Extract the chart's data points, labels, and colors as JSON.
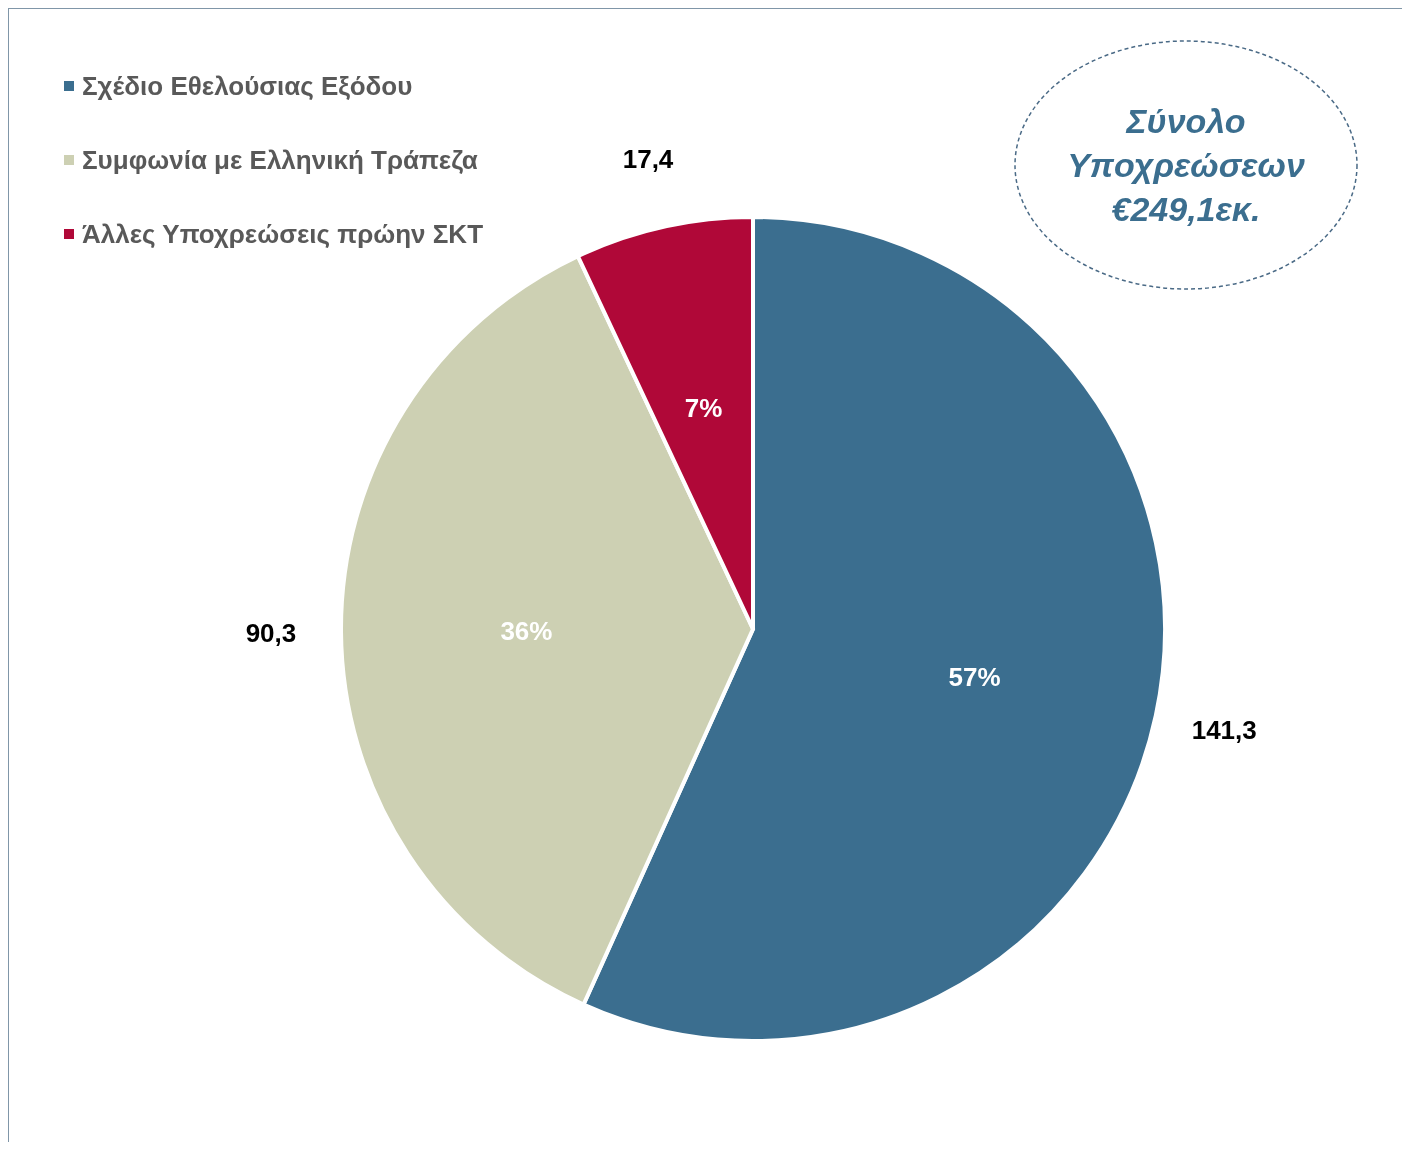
{
  "chart_data": {
    "type": "pie",
    "categories": [
      "Σχέδιο Εθελούσιας Εξόδου",
      "Συμφωνία με Ελληνική Τράπεζα",
      "Άλλες Υποχρεώσεις πρώην ΣΚΤ"
    ],
    "values": [
      141.3,
      90.3,
      17.4
    ],
    "colors": [
      "#3b6e8f",
      "#cdd0b3",
      "#b00838"
    ],
    "value_labels": [
      "141,3",
      "90,3",
      "17,4"
    ],
    "legend": "top left",
    "annotations": [
      "Σύνολο Υποχρεώσεων €249,1εκ.",
      {
        "text": "57%",
        "x": "Σχέδιο Εθελούσιας Εξόδου"
      },
      {
        "text": "36%",
        "x": "Συμφωνία με Ελληνική Τράπεζα"
      },
      {
        "text": "7%",
        "x": "Άλλες Υποχρεώσεις πρώην ΣΚΤ"
      }
    ]
  }
}
